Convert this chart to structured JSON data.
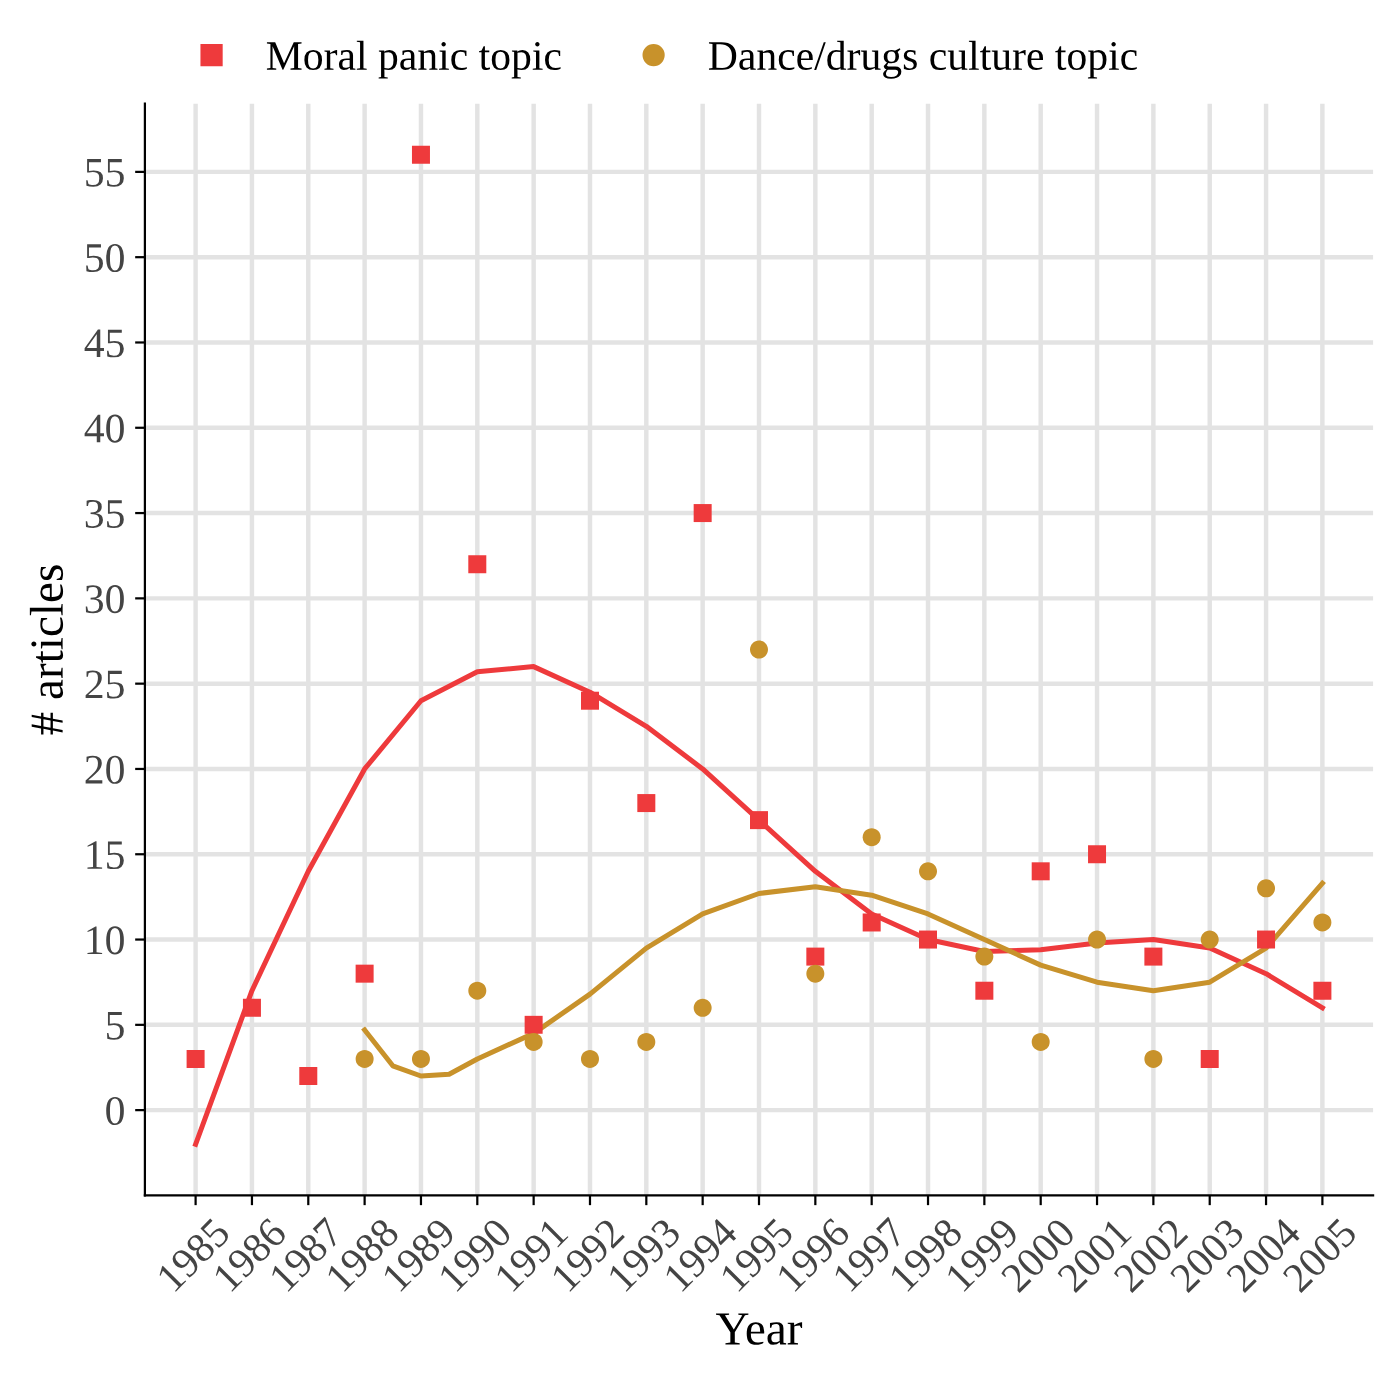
{
  "chart_data": {
    "type": "scatter",
    "xlabel": "Year",
    "ylabel": "# articles",
    "xlim": [
      1984.1,
      2005.9
    ],
    "ylim": [
      -5,
      59
    ],
    "xticks": [
      1985,
      1986,
      1987,
      1988,
      1989,
      1990,
      1991,
      1992,
      1993,
      1994,
      1995,
      1996,
      1997,
      1998,
      1999,
      2000,
      2001,
      2002,
      2003,
      2004,
      2005
    ],
    "yticks": [
      0,
      5,
      10,
      15,
      20,
      25,
      30,
      35,
      40,
      45,
      50,
      55
    ],
    "grid": true,
    "legend": "top",
    "series": [
      {
        "name": "Moral panic topic",
        "marker": "square",
        "color": "#ee3a3c",
        "x": [
          1985,
          1986,
          1987,
          1988,
          1989,
          1990,
          1991,
          1992,
          1993,
          1994,
          1995,
          1996,
          1997,
          1998,
          1999,
          2000,
          2001,
          2002,
          2003,
          2004,
          2005
        ],
        "values": [
          3,
          6,
          2,
          8,
          56,
          32,
          5,
          24,
          18,
          35,
          17,
          9,
          11,
          10,
          7,
          14,
          15,
          9,
          3,
          10,
          7
        ]
      },
      {
        "name": "Dance/drugs culture topic",
        "marker": "circle",
        "color": "#c8922b",
        "x": [
          1988,
          1989,
          1990,
          1991,
          1992,
          1993,
          1994,
          1995,
          1996,
          1997,
          1998,
          1999,
          2000,
          2001,
          2002,
          2003,
          2004,
          2005
        ],
        "values": [
          3,
          3,
          7,
          4,
          3,
          4,
          6,
          27,
          8,
          16,
          14,
          9,
          4,
          10,
          3,
          10,
          13,
          11
        ]
      },
      {
        "type": "line",
        "marker": "none",
        "line_style": "solid",
        "color": "#ee3a3c",
        "x": [
          1985,
          1986,
          1987,
          1988,
          1989,
          1990,
          1991,
          1992,
          1993,
          1994,
          1995,
          1996,
          1997,
          1998,
          1999,
          2000,
          2001,
          2002,
          2003,
          2004,
          2005
        ],
        "values": [
          -2,
          7,
          14,
          20,
          24,
          25.7,
          26,
          24.5,
          22.5,
          20,
          17,
          14,
          11.5,
          10,
          9.3,
          9.4,
          9.8,
          10,
          9.5,
          8,
          6
        ]
      },
      {
        "type": "line",
        "marker": "none",
        "line_style": "solid",
        "color": "#c8922b",
        "x": [
          1988,
          1988.5,
          1989,
          1989.5,
          1990,
          1991,
          1992,
          1993,
          1994,
          1995,
          1996,
          1997,
          1998,
          1999,
          2000,
          2001,
          2002,
          2003,
          2004,
          2005
        ],
        "values": [
          4.7,
          2.6,
          2,
          2.1,
          3,
          4.5,
          6.8,
          9.5,
          11.5,
          12.7,
          13.1,
          12.6,
          11.5,
          10,
          8.5,
          7.5,
          7,
          7.5,
          9.5,
          13.3
        ]
      }
    ]
  }
}
